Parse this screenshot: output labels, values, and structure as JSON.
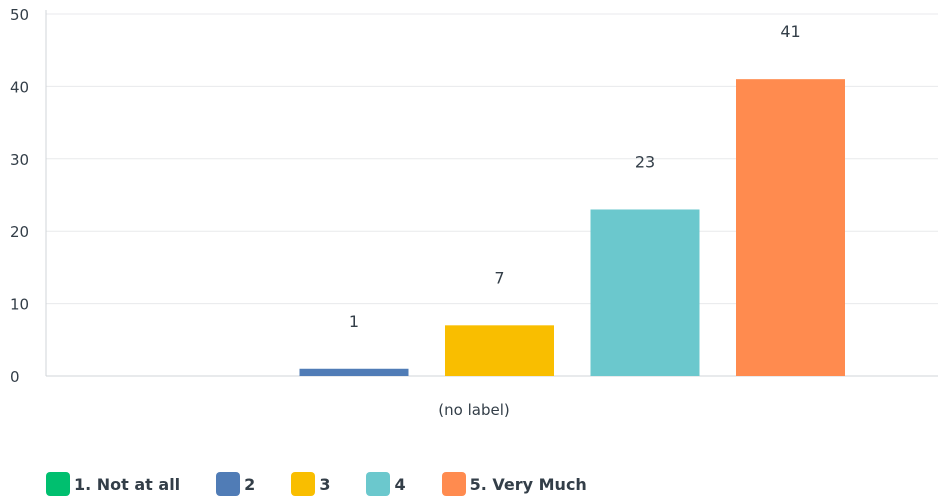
{
  "chart_data": {
    "type": "bar",
    "categories": [
      "(no label)"
    ],
    "series": [
      {
        "name": "1. Not at all",
        "values": [
          0
        ],
        "color": "#00bf6f"
      },
      {
        "name": "2",
        "values": [
          1
        ],
        "color": "#507cb6"
      },
      {
        "name": "3",
        "values": [
          7
        ],
        "color": "#f9be00"
      },
      {
        "name": "4",
        "values": [
          23
        ],
        "color": "#6bc8cd"
      },
      {
        "name": "5. Very Much",
        "values": [
          41
        ],
        "color": "#ff8b4f"
      }
    ],
    "data_labels": [
      "",
      "1",
      "7",
      "23",
      "41"
    ],
    "ylim": [
      0,
      50
    ],
    "yticks": [
      0,
      10,
      20,
      30,
      40,
      50
    ],
    "grid": true,
    "legend": "bottom-left"
  }
}
